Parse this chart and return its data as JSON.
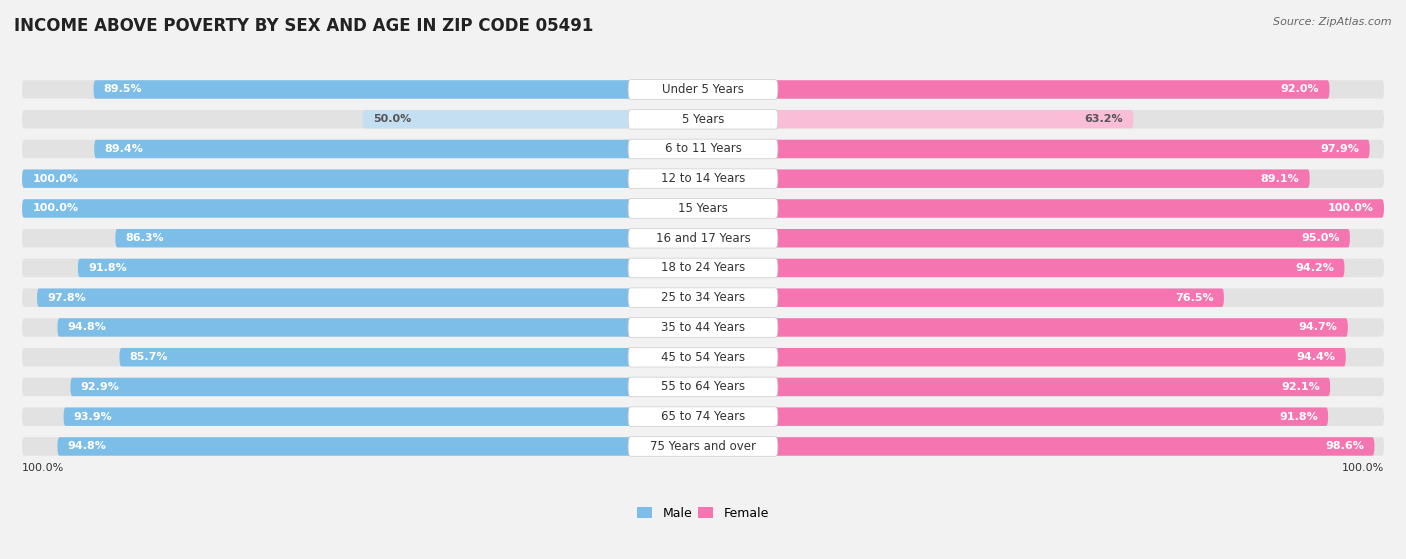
{
  "title": "INCOME ABOVE POVERTY BY SEX AND AGE IN ZIP CODE 05491",
  "source": "Source: ZipAtlas.com",
  "categories": [
    "Under 5 Years",
    "5 Years",
    "6 to 11 Years",
    "12 to 14 Years",
    "15 Years",
    "16 and 17 Years",
    "18 to 24 Years",
    "25 to 34 Years",
    "35 to 44 Years",
    "45 to 54 Years",
    "55 to 64 Years",
    "65 to 74 Years",
    "75 Years and over"
  ],
  "male_values": [
    89.5,
    50.0,
    89.4,
    100.0,
    100.0,
    86.3,
    91.8,
    97.8,
    94.8,
    85.7,
    92.9,
    93.9,
    94.8
  ],
  "female_values": [
    92.0,
    63.2,
    97.9,
    89.1,
    100.0,
    95.0,
    94.2,
    76.5,
    94.7,
    94.4,
    92.1,
    91.8,
    98.6
  ],
  "male_color": "#7dbee8",
  "male_color_light": "#c5dff2",
  "female_color": "#f575b0",
  "female_color_light": "#f9bdd8",
  "bg_bar_color": "#e2e2e2",
  "background_color": "#f2f2f2",
  "row_bg_color": "#e8e8e8",
  "title_fontsize": 12,
  "label_fontsize": 8.5,
  "value_fontsize": 8,
  "legend_fontsize": 9,
  "footer_value": "100.0%"
}
